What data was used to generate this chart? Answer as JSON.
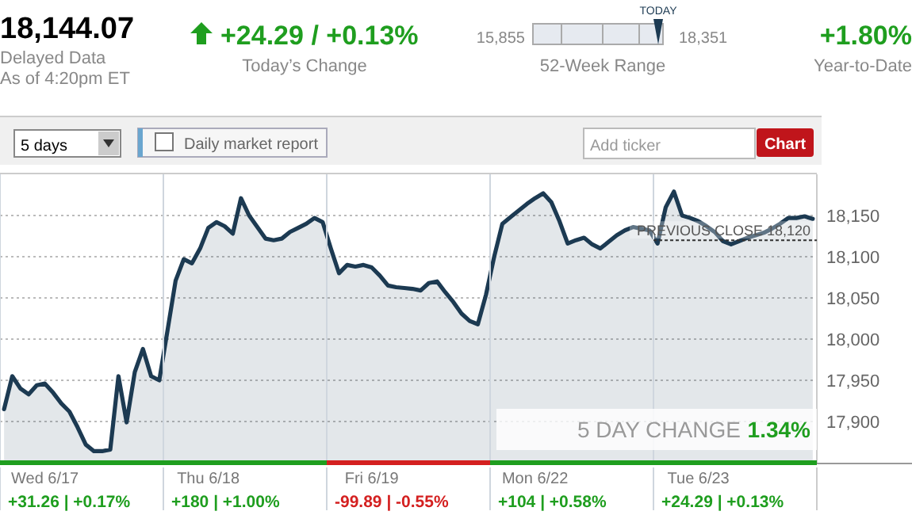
{
  "chart_data": {
    "type": "area",
    "title": "18,144.07",
    "annotations": [
      "Delayed Data",
      "As of 4:20pm ET",
      "+24.29 / +0.13%",
      "Today’s Change",
      "15,855",
      "TODAY",
      "18,351",
      "52-Week Range",
      "+1.80%",
      "Year-to-Date",
      "5 days",
      "Daily market report",
      "Add ticker",
      "Chart",
      "5 DAY CHANGE",
      "1.34%",
      "+31.26 | +0.17%",
      "+180 | +1.00%",
      "-99.89 | -0.55%",
      "+104 | +0.58%",
      "+24.29 | +0.13%"
    ],
    "categories": [
      null,
      null,
      null,
      null,
      null,
      "Wed 6/17",
      null,
      null,
      null,
      null,
      null,
      null,
      null,
      null,
      null,
      null,
      null,
      null,
      null,
      null,
      null,
      null,
      null,
      null,
      null,
      "Thu 6/18",
      null,
      null,
      null,
      null,
      null,
      null,
      null,
      null,
      null,
      null,
      null,
      null,
      null,
      null,
      null,
      null,
      null,
      null,
      null,
      "Fri 6/19",
      null,
      null,
      null,
      null,
      null,
      null,
      null,
      null,
      null,
      null,
      null,
      null,
      null,
      null,
      null,
      null,
      null,
      null,
      null,
      "Mon 6/22",
      null,
      null,
      null,
      null,
      null,
      null,
      null,
      null,
      null,
      null,
      null,
      null,
      null,
      null,
      null,
      null,
      null,
      null,
      null,
      "Tue 6/23",
      null,
      null,
      null,
      null,
      null,
      null,
      null,
      null,
      null,
      null,
      null,
      null,
      null,
      null
    ],
    "series": [
      {
        "color": "#1c3a52",
        "values": [
          17915,
          17955,
          17940,
          17933,
          17944,
          17946,
          17935,
          17922,
          17912,
          17893,
          17872,
          17864,
          17864,
          17866,
          17955,
          17899,
          17960,
          17988,
          17955,
          17950,
          18010,
          18071,
          18097,
          18092,
          18110,
          18135,
          18142,
          18137,
          18128,
          18171,
          18150,
          18136,
          18122,
          18120,
          18122,
          18130,
          18135,
          18140,
          18147,
          18142,
          18110,
          18080,
          18090,
          18088,
          18090,
          18087,
          18077,
          18065,
          18063,
          18062,
          18061,
          18059,
          18068,
          18070,
          18057,
          18045,
          18031,
          18022,
          18018,
          18054,
          18100,
          18140,
          18148,
          18156,
          18164,
          18171,
          18177,
          18166,
          18143,
          18116,
          18120,
          18123,
          18115,
          18110,
          18118,
          18126,
          18132,
          18136,
          18134,
          18132,
          18116,
          18160,
          18179,
          18150,
          18147,
          18143,
          18137,
          18130,
          18119,
          18115,
          18119,
          18123,
          18126,
          18129,
          18134,
          18140,
          18147,
          18147,
          18149,
          18146
        ]
      }
    ],
    "ylim": [
      17850,
      18200
    ],
    "yticks": [
      {
        "value": 17900,
        "label": "17,900"
      },
      {
        "value": 17950,
        "label": "17,950"
      },
      {
        "value": 18000,
        "label": "18,000"
      },
      {
        "value": 18050,
        "label": "18,050"
      },
      {
        "value": 18100,
        "label": "18,100"
      },
      {
        "value": 18150,
        "label": "18,150"
      }
    ],
    "grid": true,
    "ref_lines": [
      {
        "axis": "y",
        "value": 18120,
        "label": "PREVIOUS CLOSE 18,120",
        "line_style": "dashed",
        "color": "#333333"
      }
    ]
  }
}
